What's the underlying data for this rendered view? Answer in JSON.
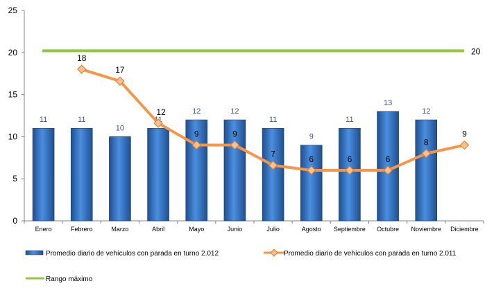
{
  "chart_data": {
    "type": "bar",
    "categories": [
      "Enero",
      "Febrero",
      "Marzo",
      "Abril",
      "Mayo",
      "Junio",
      "Julio",
      "Agosto",
      "Septiembre",
      "Octubre",
      "Noviembre",
      "Diciembre"
    ],
    "ylim": [
      0,
      25
    ],
    "yticks": [
      0,
      5,
      10,
      15,
      20,
      25
    ],
    "grid": false,
    "legend_position": "bottom",
    "series": [
      {
        "name": "Promedio diario de vehículos con parada en turno 2.012",
        "type": "bar",
        "values": [
          11,
          11,
          10,
          11,
          12,
          12,
          11,
          9,
          11,
          13,
          12,
          null
        ],
        "color": "#2f6fbf",
        "label_color": "#3a4fb0"
      },
      {
        "name": "Promedio diario de vehículos con parada en turno 2.011",
        "type": "line",
        "values": [
          null,
          18,
          16.6,
          11.6,
          9,
          9,
          6.6,
          6,
          6,
          6,
          8,
          9
        ],
        "labels": [
          "",
          "18",
          "17",
          "12",
          "9",
          "9",
          "7",
          "6",
          "6",
          "6",
          "8",
          "9"
        ],
        "color": "#f79646",
        "marker_color": "#fac090"
      },
      {
        "name": "Rango máximo",
        "type": "line",
        "values": [
          20.2,
          20.2,
          20.2,
          20.2,
          20.2,
          20.2,
          20.2,
          20.2,
          20.2,
          20.2,
          20.2,
          20.2
        ],
        "end_label": "20",
        "color": "#92c83e",
        "label_color": "#7a6a00"
      }
    ]
  }
}
